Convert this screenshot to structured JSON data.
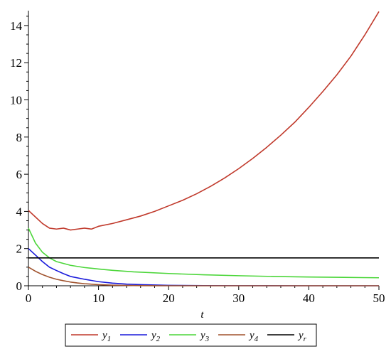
{
  "chart_data": {
    "type": "line",
    "xlabel": "t",
    "ylabel": "",
    "xlim": [
      0,
      50
    ],
    "ylim": [
      0,
      14.8
    ],
    "x_ticks": [
      0,
      10,
      20,
      30,
      40,
      50
    ],
    "y_ticks": [
      0,
      2,
      4,
      6,
      8,
      10,
      12,
      14
    ],
    "grid": false,
    "legend_position": "bottom",
    "series": [
      {
        "name": "y1",
        "color": "#c0392b",
        "x": [
          0,
          1,
          2,
          3,
          4,
          5,
          6,
          7,
          8,
          9,
          10,
          12,
          14,
          16,
          18,
          20,
          22,
          24,
          26,
          28,
          30,
          32,
          34,
          36,
          38,
          40,
          42,
          44,
          46,
          48,
          50
        ],
        "y": [
          4.05,
          3.7,
          3.35,
          3.1,
          3.05,
          3.1,
          3.0,
          3.05,
          3.1,
          3.05,
          3.2,
          3.35,
          3.55,
          3.75,
          4.0,
          4.3,
          4.6,
          4.95,
          5.35,
          5.8,
          6.3,
          6.85,
          7.45,
          8.1,
          8.8,
          9.6,
          10.45,
          11.35,
          12.35,
          13.5,
          14.75
        ]
      },
      {
        "name": "y2",
        "color": "#1a1adb",
        "x": [
          0,
          1,
          2,
          3,
          4,
          5,
          6,
          8,
          10,
          12,
          14,
          16,
          18,
          20,
          25,
          30,
          40,
          50
        ],
        "y": [
          2.0,
          1.65,
          1.3,
          1.0,
          0.82,
          0.65,
          0.5,
          0.35,
          0.22,
          0.14,
          0.09,
          0.06,
          0.04,
          0.02,
          0.01,
          0.005,
          0.0,
          0.0
        ]
      },
      {
        "name": "y3",
        "color": "#4cd63a",
        "x": [
          0,
          1,
          2,
          3,
          4,
          5,
          6,
          8,
          10,
          12,
          15,
          20,
          25,
          30,
          35,
          40,
          45,
          50
        ],
        "y": [
          3.1,
          2.3,
          1.8,
          1.5,
          1.3,
          1.2,
          1.1,
          0.98,
          0.9,
          0.83,
          0.75,
          0.66,
          0.59,
          0.54,
          0.5,
          0.47,
          0.45,
          0.43
        ]
      },
      {
        "name": "y4",
        "color": "#a0522d",
        "x": [
          0,
          1,
          2,
          3,
          4,
          5,
          6,
          7,
          8,
          10,
          12,
          14,
          16,
          18,
          20,
          25,
          30,
          40,
          50
        ],
        "y": [
          1.0,
          0.78,
          0.6,
          0.46,
          0.35,
          0.27,
          0.2,
          0.15,
          0.11,
          0.06,
          0.03,
          0.015,
          0.008,
          0.004,
          0.0,
          0.0,
          0.0,
          0.0,
          0.0
        ]
      },
      {
        "name": "yr",
        "color": "#000000",
        "x": [
          0,
          50
        ],
        "y": [
          1.5,
          1.5
        ]
      }
    ],
    "legend": [
      {
        "base": "y",
        "sub": "1",
        "color": "#c0392b"
      },
      {
        "base": "y",
        "sub": "2",
        "color": "#1a1adb"
      },
      {
        "base": "y",
        "sub": "3",
        "color": "#4cd63a"
      },
      {
        "base": "y",
        "sub": "4",
        "color": "#a0522d"
      },
      {
        "base": "y",
        "sub": "r",
        "color": "#000000"
      }
    ]
  }
}
